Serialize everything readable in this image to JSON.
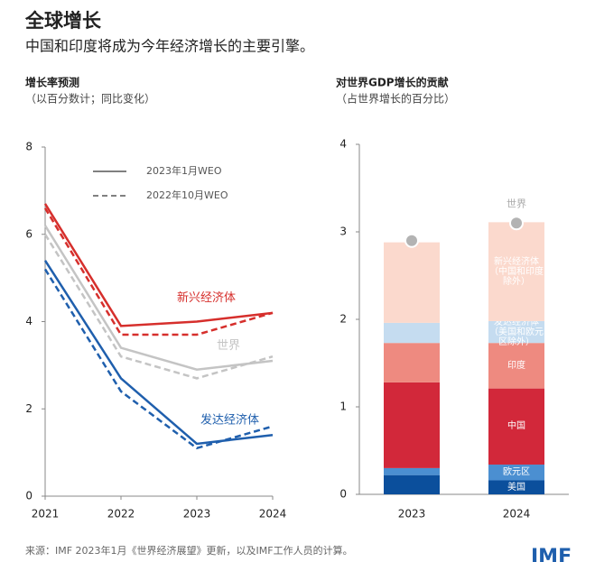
{
  "header": {
    "title": "全球增长",
    "subtitle": "中国和印度将成为今年经济增长的主要引擎。"
  },
  "chart_data": [
    {
      "type": "line",
      "title": "增长率预测",
      "subtitle": "（以百分数计；同比变化）",
      "x": [
        2021,
        2022,
        2023,
        2024
      ],
      "xlim": [
        2021,
        2024
      ],
      "xticks": [
        2021,
        2022,
        2023,
        2024
      ],
      "ylim": [
        0,
        8
      ],
      "yticks": [
        0,
        2,
        4,
        6,
        8
      ],
      "legend": [
        {
          "label": "2023年1月WEO",
          "dashed": false,
          "color": "#808080"
        },
        {
          "label": "2022年10月WEO",
          "dashed": true,
          "color": "#808080"
        }
      ],
      "series": [
        {
          "name": "新兴经济体",
          "color": "#d62f2c",
          "values": [
            6.7,
            3.9,
            4.0,
            4.2
          ],
          "previous_values": [
            6.6,
            3.7,
            3.7,
            4.2
          ]
        },
        {
          "name": "世界",
          "color": "#c4c4c4",
          "values": [
            6.2,
            3.4,
            2.9,
            3.1
          ],
          "previous_values": [
            6.0,
            3.2,
            2.7,
            3.2
          ]
        },
        {
          "name": "发达经济体",
          "color": "#1f5fad",
          "values": [
            5.4,
            2.7,
            1.2,
            1.4
          ],
          "previous_values": [
            5.2,
            2.4,
            1.1,
            1.6
          ]
        }
      ]
    },
    {
      "type": "stacked_bar",
      "title": "对世界GDP增长的贡献",
      "subtitle": "（占世界增长的百分比）",
      "categories": [
        "2023",
        "2024"
      ],
      "ylim": [
        0,
        4
      ],
      "yticks": [
        0,
        1,
        2,
        3,
        4
      ],
      "series": [
        {
          "name": "美国",
          "color": "#0b4f9c",
          "values": [
            0.22,
            0.16
          ]
        },
        {
          "name": "欧元区",
          "color": "#4b8fd1",
          "values": [
            0.08,
            0.18
          ]
        },
        {
          "name": "中国",
          "color": "#d2283a",
          "values": [
            0.98,
            0.87
          ]
        },
        {
          "name": "印度",
          "color": "#ee8a80",
          "values": [
            0.45,
            0.52
          ]
        },
        {
          "name": "发达经济体（美国和欧元区除外）",
          "color": "#c5dcf0",
          "values": [
            0.23,
            0.25
          ]
        },
        {
          "name": "新兴经济体（中国和印度除外）",
          "color": "#fbd9cd",
          "values": [
            0.92,
            1.13
          ]
        }
      ],
      "world": {
        "name": "世界",
        "color": "#b3b3b3",
        "values": [
          2.9,
          3.1
        ]
      }
    }
  ],
  "footer": {
    "source": "来源：IMF 2023年1月《世界经济展望》更新，以及IMF工作人员的计算。",
    "logo": "IMF"
  }
}
